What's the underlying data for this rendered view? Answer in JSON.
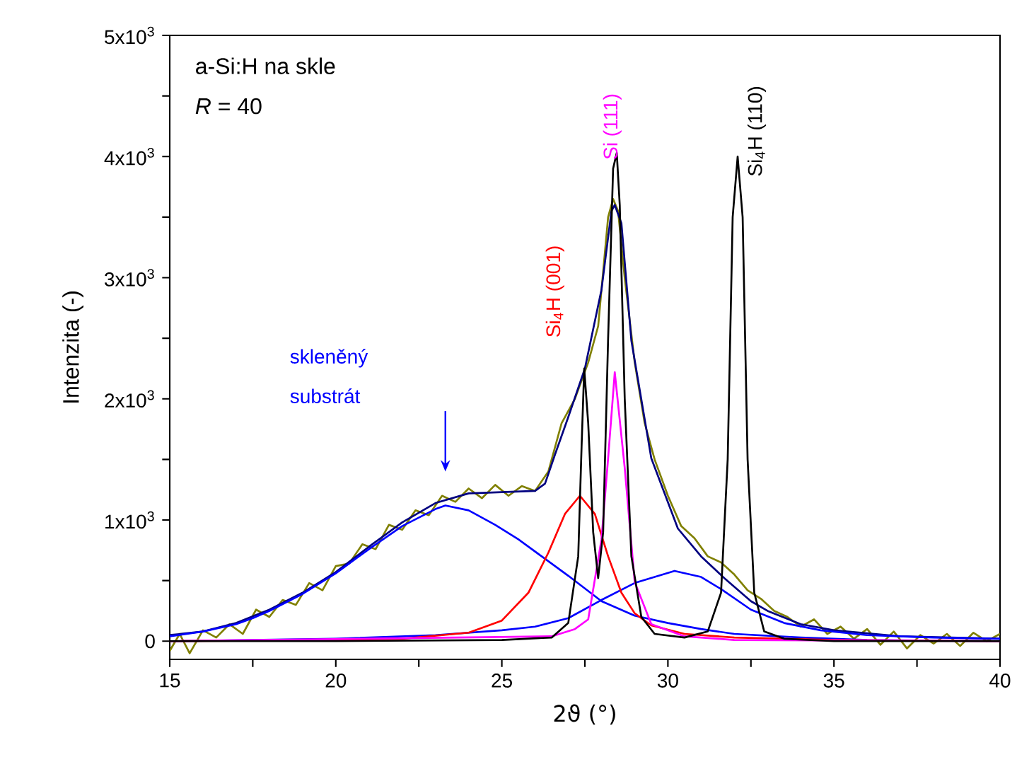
{
  "chart_data": {
    "type": "line",
    "xlabel": "2ϑ (°)",
    "ylabel": "Intenzita (-)",
    "xlim": [
      15,
      40
    ],
    "ylim": [
      -150,
      5000
    ],
    "xticks": [
      15,
      {
        "value": 17.5,
        "label": null
      },
      20,
      {
        "value": 22.5,
        "label": null
      },
      25,
      {
        "value": 27.5,
        "label": null
      },
      30,
      {
        "value": 32.5,
        "label": null
      },
      35,
      {
        "value": 37.5,
        "label": null
      },
      40
    ],
    "yticks": [
      {
        "value": 0,
        "label": "0"
      },
      {
        "value": 500,
        "label": null
      },
      {
        "value": 1000,
        "label": "1x10$^{3}$"
      },
      {
        "value": 1500,
        "label": null
      },
      {
        "value": 2000,
        "label": "2x10$^{3}$"
      },
      {
        "value": 2500,
        "label": null
      },
      {
        "value": 3000,
        "label": "3x10$^{3}$"
      },
      {
        "value": 3500,
        "label": null
      },
      {
        "value": 4000,
        "label": "4x10$^{3}$"
      },
      {
        "value": 4500,
        "label": null
      },
      {
        "value": 5000,
        "label": "5x10$^{3}$"
      }
    ],
    "grid": false,
    "marker": "none",
    "line_style": "solid",
    "series": [
      {
        "color": "#808000",
        "x": [
          15,
          15.3,
          15.6,
          16,
          16.4,
          16.8,
          17.2,
          17.6,
          18,
          18.4,
          18.8,
          19.2,
          19.6,
          20,
          20.4,
          20.8,
          21.2,
          21.6,
          22,
          22.4,
          22.8,
          23.2,
          23.6,
          24,
          24.4,
          24.8,
          25.2,
          25.6,
          26,
          26.4,
          26.8,
          27.2,
          27.6,
          27.9,
          28.2,
          28.35,
          28.5,
          28.7,
          29,
          29.3,
          29.6,
          30,
          30.4,
          30.8,
          31.2,
          31.6,
          32,
          32.4,
          32.8,
          33.2,
          33.6,
          34,
          34.4,
          34.8,
          35.2,
          35.6,
          36,
          36.4,
          36.8,
          37.2,
          37.6,
          38,
          38.4,
          38.8,
          39.2,
          39.6,
          40
        ],
        "values": [
          -80,
          60,
          -100,
          90,
          30,
          140,
          60,
          260,
          200,
          340,
          300,
          480,
          420,
          620,
          640,
          800,
          760,
          960,
          920,
          1080,
          1040,
          1200,
          1150,
          1260,
          1180,
          1290,
          1200,
          1280,
          1240,
          1400,
          1800,
          2000,
          2300,
          2600,
          3500,
          3650,
          3550,
          3000,
          2300,
          1800,
          1500,
          1200,
          950,
          850,
          700,
          650,
          550,
          420,
          350,
          250,
          200,
          120,
          180,
          60,
          120,
          20,
          100,
          -30,
          80,
          -60,
          50,
          -20,
          60,
          -40,
          70,
          0,
          60
        ]
      },
      {
        "color": "#000080",
        "x": [
          15,
          16,
          17,
          18,
          19,
          20,
          21,
          22,
          23,
          24,
          25,
          26,
          26.3,
          26.6,
          27,
          27.5,
          28,
          28.3,
          28.4,
          28.6,
          28.9,
          29.5,
          30.3,
          31,
          31.7,
          32.5,
          33,
          34,
          35,
          37,
          40
        ],
        "values": [
          50,
          80,
          150,
          260,
          400,
          570,
          780,
          980,
          1140,
          1220,
          1230,
          1240,
          1300,
          1540,
          1850,
          2250,
          2900,
          3550,
          3600,
          3450,
          2480,
          1510,
          930,
          700,
          520,
          330,
          250,
          140,
          90,
          40,
          20
        ]
      },
      {
        "color": "#0000ff",
        "x": [
          15,
          16,
          17,
          17.5,
          18,
          19,
          20,
          21,
          22,
          23,
          23.3,
          24,
          24.8,
          25.5,
          26.2,
          27,
          28,
          29,
          30,
          31,
          32,
          34,
          36,
          40
        ],
        "values": [
          40,
          80,
          140,
          190,
          250,
          390,
          560,
          760,
          950,
          1090,
          1120,
          1080,
          960,
          840,
          700,
          540,
          330,
          210,
          150,
          100,
          60,
          30,
          10,
          0
        ]
      },
      {
        "color": "#0000ff",
        "x": [
          15,
          20,
          23,
          25,
          26,
          27,
          28,
          29,
          30.2,
          31,
          31.6,
          32.5,
          33.5,
          34.6,
          36,
          38,
          40
        ],
        "values": [
          0,
          20,
          50,
          90,
          120,
          190,
          340,
          480,
          580,
          530,
          430,
          260,
          150,
          90,
          50,
          30,
          20
        ]
      },
      {
        "color": "#ff0000",
        "x": [
          15,
          20,
          22,
          24,
          25,
          25.8,
          26.4,
          26.9,
          27.35,
          27.8,
          28.2,
          28.6,
          29,
          29.5,
          30.5,
          32,
          35,
          40
        ],
        "values": [
          0,
          10,
          20,
          70,
          170,
          400,
          730,
          1050,
          1200,
          1050,
          700,
          400,
          230,
          130,
          60,
          30,
          10,
          0
        ]
      },
      {
        "color": "#ff00ff",
        "x": [
          15,
          25,
          26.5,
          27.2,
          27.6,
          28,
          28.2,
          28.4,
          28.7,
          29,
          29.5,
          30.5,
          32,
          40
        ],
        "values": [
          0,
          null,
          40,
          100,
          180,
          840,
          1510,
          2220,
          1430,
          490,
          140,
          40,
          10,
          0
        ]
      },
      {
        "color": "#000000",
        "x": [
          15,
          20,
          25,
          26.5,
          27,
          27.3,
          27.4,
          27.48,
          27.6,
          27.75,
          27.9,
          28.05,
          28.2,
          28.35,
          28.46,
          28.55,
          28.7,
          28.9,
          29.2,
          29.6,
          30.5,
          31.2,
          31.6,
          31.8,
          31.95,
          32.1,
          32.25,
          32.4,
          32.6,
          32.9,
          33.5,
          35,
          40
        ],
        "values": [
          0,
          0,
          10,
          30,
          150,
          700,
          1600,
          2250,
          1800,
          900,
          520,
          900,
          2500,
          3900,
          4030,
          3600,
          2000,
          700,
          200,
          60,
          30,
          80,
          400,
          1500,
          3500,
          4000,
          3500,
          1500,
          400,
          80,
          20,
          0,
          0
        ]
      }
    ],
    "annotations": [
      "a-Si:H na skle",
      "*R* = 40",
      "skleněný substrát",
      "Si$_{4}$H (001)",
      "Si (111)",
      "Si$_{4}$H (110)"
    ]
  }
}
